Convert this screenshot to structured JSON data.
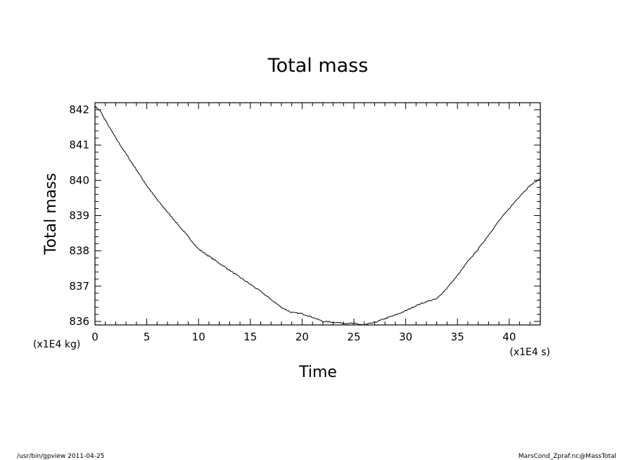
{
  "chart_data": {
    "type": "line",
    "title": "Total mass",
    "xlabel": "Time",
    "ylabel": "Total mass",
    "x_unit": "(x1E4 s)",
    "y_unit": "(x1E4 kg)",
    "xlim": [
      0,
      43
    ],
    "ylim": [
      835.9,
      842.2
    ],
    "xticks": [
      0,
      5,
      10,
      15,
      20,
      25,
      30,
      35,
      40
    ],
    "yticks": [
      836,
      837,
      838,
      839,
      840,
      841,
      842
    ],
    "grid": false,
    "series": [
      {
        "x": [
          0,
          0.5,
          1,
          2,
          3,
          4,
          5,
          6,
          7,
          8,
          9,
          10,
          11,
          12,
          13,
          14,
          15,
          16,
          17,
          18,
          19,
          20,
          21,
          22,
          23,
          24,
          25,
          26,
          27,
          28,
          29,
          30,
          31,
          32,
          33,
          34,
          35,
          36,
          37,
          38,
          39,
          40,
          41,
          42,
          43
        ],
        "values": [
          842.1,
          841.97,
          841.7,
          841.2,
          840.75,
          840.3,
          839.85,
          839.45,
          839.1,
          838.75,
          838.4,
          838.05,
          837.85,
          837.65,
          837.45,
          837.25,
          837.05,
          836.85,
          836.62,
          836.4,
          836.25,
          836.22,
          836.12,
          836.0,
          835.98,
          835.95,
          835.94,
          835.9,
          835.97,
          836.08,
          836.18,
          836.3,
          836.45,
          836.56,
          836.64,
          836.95,
          837.3,
          837.7,
          838.05,
          838.45,
          838.85,
          839.2,
          839.55,
          839.85,
          840.05
        ]
      }
    ]
  },
  "footer": {
    "left": "/usr/bin/gpview  2011-04-25",
    "right": "MarsCond_Zpraf.nc@MassTotal"
  }
}
